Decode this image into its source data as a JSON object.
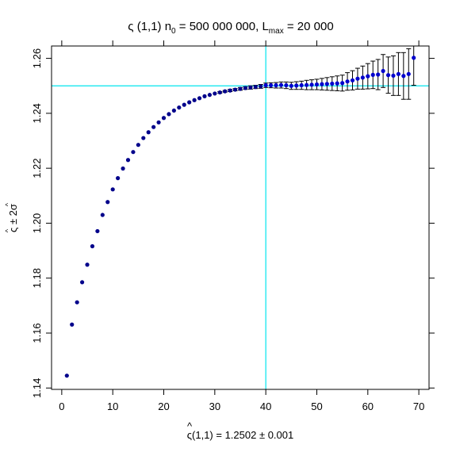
{
  "chart_data": {
    "type": "scatter",
    "title": {
      "main": "ς (1,1)  n",
      "n_sub": "0",
      "n_value": " = 500 000 000, L",
      "l_sub": "max",
      "l_value": " = 20 000"
    },
    "xlabel": {
      "hat": "^",
      "main": "ς(1,1) = 1.2502 ± 0.001"
    },
    "ylabel": {
      "hat1": "^",
      "main": "ς ± 2σ",
      "hat2": "^"
    },
    "xlim": [
      -2,
      72
    ],
    "ylim": [
      1.1395,
      1.2645
    ],
    "x_ticks": [
      0,
      10,
      20,
      30,
      40,
      50,
      60,
      70
    ],
    "x_tick_labels": [
      "0",
      "10",
      "20",
      "30",
      "40",
      "50",
      "60",
      "70"
    ],
    "y_ticks": [
      1.14,
      1.16,
      1.18,
      1.2,
      1.22,
      1.24,
      1.26
    ],
    "y_tick_labels": [
      "1.14",
      "1.16",
      "1.18",
      "1.20",
      "1.22",
      "1.24",
      "1.26"
    ],
    "grid": false,
    "legend": "none",
    "reference_lines": {
      "vertical_x": 40,
      "horizontal_y": 1.25,
      "color": "#00e5ee"
    },
    "point_color": "#00008b",
    "point_color_late": "#0000cd",
    "errorbar_color": "#000000",
    "series": [
      {
        "x": [
          1,
          2,
          3,
          4,
          5,
          6,
          7,
          8,
          9,
          10,
          11,
          12,
          13,
          14,
          15,
          16,
          17,
          18,
          19,
          20,
          21,
          22,
          23,
          24,
          25,
          26,
          27,
          28,
          29,
          30,
          31,
          32,
          33,
          34,
          35,
          36,
          37,
          38,
          39,
          40,
          41,
          42,
          43,
          44,
          45,
          46,
          47,
          48,
          49,
          50,
          51,
          52,
          53,
          54,
          55,
          56,
          57,
          58,
          59,
          60,
          61,
          62,
          63,
          64,
          65,
          66,
          67,
          68,
          69
        ],
        "y": [
          1.1445,
          1.1631,
          1.1712,
          1.1785,
          1.1849,
          1.1916,
          1.1971,
          1.203,
          1.2077,
          1.2123,
          1.2164,
          1.2199,
          1.223,
          1.2259,
          1.2285,
          1.231,
          1.2331,
          1.235,
          1.2367,
          1.2383,
          1.2397,
          1.241,
          1.2421,
          1.2431,
          1.244,
          1.2448,
          1.2455,
          1.2462,
          1.2467,
          1.2472,
          1.2476,
          1.248,
          1.2483,
          1.2486,
          1.2489,
          1.2492,
          1.2494,
          1.2496,
          1.2498,
          1.2502,
          1.2502,
          1.2502,
          1.2503,
          1.2502,
          1.25,
          1.2501,
          1.2502,
          1.2503,
          1.2504,
          1.2505,
          1.2506,
          1.2507,
          1.2508,
          1.2509,
          1.251,
          1.2516,
          1.252,
          1.2526,
          1.253,
          1.2535,
          1.254,
          1.2541,
          1.2554,
          1.2539,
          1.2537,
          1.2543,
          1.2536,
          1.2543,
          1.2602
        ],
        "err": [
          0,
          0,
          0,
          0,
          0,
          0,
          0,
          0,
          0,
          0,
          0,
          0,
          0,
          0,
          0,
          0,
          0,
          0,
          0,
          0,
          0,
          0,
          0,
          0,
          0,
          0,
          0,
          0,
          0,
          0,
          0.0003,
          0.0003,
          0.0004,
          0.0004,
          0.0005,
          0.0005,
          0.0006,
          0.0006,
          0.0007,
          0.0008,
          0.0009,
          0.001,
          0.0011,
          0.0012,
          0.0013,
          0.0014,
          0.0015,
          0.0017,
          0.0018,
          0.0019,
          0.0021,
          0.0023,
          0.0025,
          0.0027,
          0.0029,
          0.0032,
          0.0035,
          0.0038,
          0.0042,
          0.0046,
          0.005,
          0.0055,
          0.006,
          0.0066,
          0.0072,
          0.0078,
          0.0085,
          0.0092,
          0.01
        ]
      }
    ]
  }
}
